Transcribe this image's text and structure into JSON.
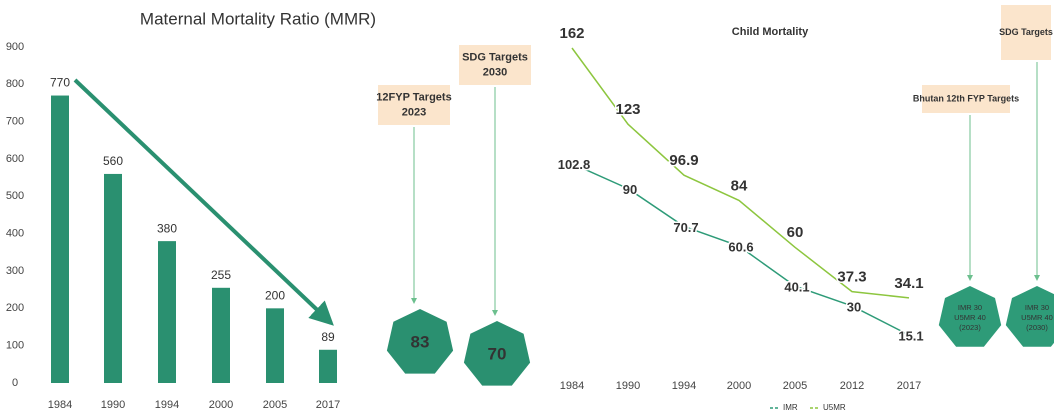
{
  "chart_data": [
    {
      "type": "bar",
      "title": "Maternal Mortality Ratio (MMR)",
      "categories": [
        "1984",
        "1990",
        "1994",
        "2000",
        "2005",
        "2017"
      ],
      "values": [
        770,
        560,
        380,
        255,
        200,
        89
      ],
      "color": "#2a9070",
      "ylim": [
        0,
        900
      ],
      "yticks": [
        0,
        100,
        200,
        300,
        400,
        500,
        600,
        700,
        800,
        900
      ],
      "targets": [
        {
          "label": [
            "12FYP Targets",
            "2023"
          ],
          "value": 83
        },
        {
          "label": [
            "SDG Targets",
            "2030"
          ],
          "value": 70
        }
      ]
    },
    {
      "type": "line",
      "title": "Child Mortality",
      "categories": [
        "1984",
        "1990",
        "1994",
        "2000",
        "2005",
        "2012",
        "2017"
      ],
      "series": [
        {
          "name": "IMR",
          "color": "#2e9b78",
          "values": [
            102.8,
            90,
            70.7,
            60.6,
            40.1,
            30,
            15.1
          ]
        },
        {
          "name": "U5MR",
          "color": "#8dc63f",
          "values": [
            162,
            123,
            96.9,
            84,
            60,
            37.3,
            34.1
          ]
        }
      ],
      "targets": [
        {
          "label": [
            "Bhutan 12th FYP Targets"
          ],
          "value": [
            "IMR 30",
            "U5MR 40",
            "(2023)"
          ]
        },
        {
          "label": [
            "SDG Targets"
          ],
          "value": [
            "IMR 30",
            "U5MR 40",
            "(2030)"
          ]
        }
      ]
    }
  ]
}
